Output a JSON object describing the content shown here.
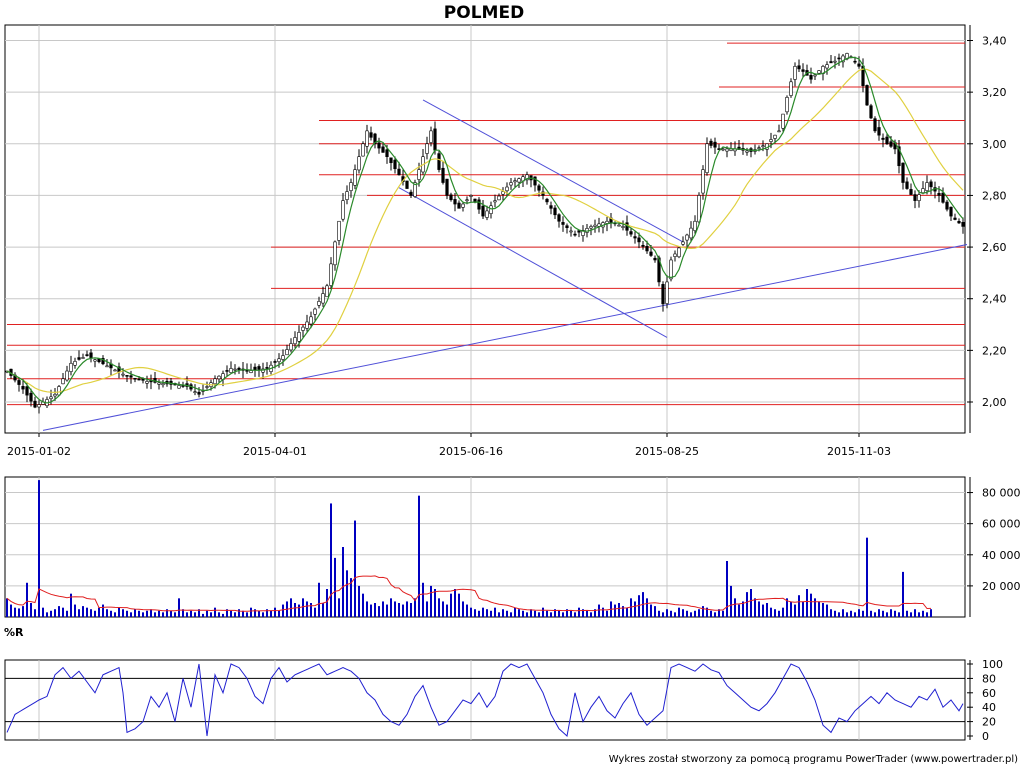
{
  "title": "POLMED",
  "footer": "Wykres został stworzony za pomocą programu PowerTrader (www.powertrader.pl)",
  "oscillator_label": "%R",
  "colors": {
    "candle_up": "#ffffff",
    "candle_down": "#000000",
    "wick": "#000000",
    "ma_short": "#2a8a2a",
    "ma_long": "#e0d040",
    "support_lines": "#e02020",
    "trend_lines": "#5050d8",
    "volume_bars": "#0000c0",
    "volume_ma": "#e02020",
    "williams_r": "#2020d0",
    "grid": "#c8c8c8"
  },
  "chart_data": [
    {
      "type": "candlestick",
      "panel": "price",
      "title": "POLMED",
      "x_tick_labels": [
        "2015-01-02",
        "2015-04-01",
        "2015-06-16",
        "2015-08-25",
        "2015-11-03"
      ],
      "x_tick_index": [
        8,
        67,
        116,
        165,
        213
      ],
      "n_sessions": 240,
      "ylim": [
        1.88,
        3.46
      ],
      "y_ticks": [
        2.0,
        2.2,
        2.4,
        2.6,
        2.8,
        3.0,
        3.2,
        3.4
      ],
      "y_tick_labels": [
        "2,00",
        "2,20",
        "2,40",
        "2,60",
        "2,80",
        "3,00",
        "3,20",
        "3,40"
      ],
      "grid": true,
      "close_anchors": [
        [
          0,
          2.12
        ],
        [
          4,
          2.05
        ],
        [
          7,
          1.98
        ],
        [
          12,
          2.03
        ],
        [
          16,
          2.15
        ],
        [
          20,
          2.18
        ],
        [
          25,
          2.14
        ],
        [
          30,
          2.1
        ],
        [
          35,
          2.08
        ],
        [
          40,
          2.07
        ],
        [
          45,
          2.06
        ],
        [
          48,
          2.03
        ],
        [
          52,
          2.09
        ],
        [
          56,
          2.13
        ],
        [
          60,
          2.12
        ],
        [
          65,
          2.13
        ],
        [
          69,
          2.18
        ],
        [
          72,
          2.25
        ],
        [
          76,
          2.33
        ],
        [
          80,
          2.45
        ],
        [
          82,
          2.62
        ],
        [
          84,
          2.78
        ],
        [
          86,
          2.85
        ],
        [
          88,
          2.95
        ],
        [
          90,
          3.05
        ],
        [
          92,
          3.0
        ],
        [
          95,
          2.95
        ],
        [
          98,
          2.88
        ],
        [
          101,
          2.8
        ],
        [
          104,
          2.95
        ],
        [
          106,
          3.05
        ],
        [
          108,
          2.9
        ],
        [
          110,
          2.8
        ],
        [
          113,
          2.75
        ],
        [
          116,
          2.8
        ],
        [
          119,
          2.72
        ],
        [
          122,
          2.78
        ],
        [
          126,
          2.85
        ],
        [
          130,
          2.88
        ],
        [
          134,
          2.8
        ],
        [
          138,
          2.7
        ],
        [
          142,
          2.65
        ],
        [
          146,
          2.68
        ],
        [
          150,
          2.7
        ],
        [
          154,
          2.68
        ],
        [
          158,
          2.62
        ],
        [
          162,
          2.55
        ],
        [
          164,
          2.38
        ],
        [
          166,
          2.55
        ],
        [
          169,
          2.62
        ],
        [
          172,
          2.7
        ],
        [
          175,
          3.0
        ],
        [
          178,
          2.98
        ],
        [
          182,
          2.98
        ],
        [
          186,
          2.97
        ],
        [
          190,
          3.0
        ],
        [
          193,
          3.05
        ],
        [
          195,
          3.18
        ],
        [
          197,
          3.3
        ],
        [
          199,
          3.28
        ],
        [
          201,
          3.25
        ],
        [
          204,
          3.3
        ],
        [
          207,
          3.32
        ],
        [
          210,
          3.35
        ],
        [
          213,
          3.3
        ],
        [
          215,
          3.15
        ],
        [
          217,
          3.05
        ],
        [
          220,
          3.0
        ],
        [
          222,
          2.98
        ],
        [
          224,
          2.85
        ],
        [
          227,
          2.78
        ],
        [
          230,
          2.85
        ],
        [
          233,
          2.8
        ],
        [
          236,
          2.72
        ],
        [
          239,
          2.68
        ]
      ],
      "ma_short_period": 5,
      "ma_long_period": 20,
      "horizontal_levels": [
        {
          "value": 3.39,
          "from_index": 180
        },
        {
          "value": 3.22,
          "from_index": 178
        },
        {
          "value": 3.09,
          "from_index": 78
        },
        {
          "value": 3.0,
          "from_index": 78
        },
        {
          "value": 2.88,
          "from_index": 78
        },
        {
          "value": 2.8,
          "from_index": 90
        },
        {
          "value": 2.6,
          "from_index": 66
        },
        {
          "value": 2.44,
          "from_index": 66
        },
        {
          "value": 2.3,
          "from_index": 0
        },
        {
          "value": 2.22,
          "from_index": 0
        },
        {
          "value": 2.09,
          "from_index": 0
        },
        {
          "value": 1.99,
          "from_index": 0
        }
      ],
      "trend_lines": [
        {
          "from": [
            9,
            1.89
          ],
          "to": [
            240,
            2.61
          ]
        },
        {
          "from": [
            104,
            3.17
          ],
          "to": [
            169,
            2.62
          ]
        },
        {
          "from": [
            98,
            2.83
          ],
          "to": [
            165,
            2.25
          ]
        }
      ]
    },
    {
      "type": "bar",
      "panel": "volume",
      "ylim": [
        0,
        90000
      ],
      "y_ticks": [
        20000,
        40000,
        60000,
        80000
      ],
      "y_tick_labels": [
        "20 000",
        "40 000",
        "60 000",
        "80 000"
      ],
      "values": [
        12000,
        8000,
        6000,
        5500,
        7000,
        22000,
        9000,
        5000,
        88000,
        6000,
        3000,
        4000,
        5000,
        7000,
        6000,
        4000,
        15000,
        8000,
        5000,
        7000,
        6000,
        5000,
        4000,
        6000,
        8000,
        5000,
        4000,
        3000,
        6000,
        5000,
        4000,
        3000,
        5000,
        4000,
        3000,
        4000,
        5000,
        3000,
        4000,
        3000,
        5000,
        4000,
        3000,
        12000,
        5000,
        3000,
        4000,
        3000,
        5000,
        2000,
        4000,
        3000,
        6000,
        3000,
        2000,
        5000,
        4000,
        3000,
        5000,
        4000,
        3000,
        6000,
        5000,
        4000,
        3000,
        5000,
        4000,
        6000,
        4000,
        8000,
        10000,
        12000,
        9000,
        8000,
        12000,
        10000,
        9000,
        6000,
        22000,
        9000,
        18000,
        73000,
        38000,
        12000,
        45000,
        30000,
        25000,
        62000,
        20000,
        15000,
        10000,
        8000,
        9000,
        7000,
        10000,
        8000,
        12000,
        10000,
        9000,
        8000,
        10000,
        9000,
        12000,
        78000,
        22000,
        10000,
        20000,
        18000,
        12000,
        10000,
        8000,
        15000,
        18000,
        15000,
        10000,
        8000,
        6000,
        5000,
        4000,
        6000,
        5000,
        4000,
        6000,
        3000,
        5000,
        4000,
        3000,
        6000,
        5000,
        4000,
        3000,
        5000,
        4000,
        3000,
        6000,
        4000,
        3000,
        5000,
        4000,
        3000,
        5000,
        4000,
        3000,
        6000,
        5000,
        4000,
        3000,
        5000,
        8000,
        6000,
        4000,
        10000,
        8000,
        9000,
        7000,
        6000,
        12000,
        10000,
        14000,
        16000,
        12000,
        8000,
        7000,
        4000,
        3000,
        5000,
        4000,
        3000,
        6000,
        5000,
        4000,
        3000,
        4000,
        5000,
        7000,
        6000,
        4000,
        3000,
        5000,
        4000,
        36000,
        20000,
        12000,
        8000,
        10000,
        16000,
        18000,
        12000,
        10000,
        8000,
        9000,
        6000,
        5000,
        4000,
        6000,
        12000,
        10000,
        8000,
        14000,
        10000,
        18000,
        15000,
        12000,
        10000,
        9000,
        8000,
        5000,
        4000,
        3000,
        5000,
        3000,
        4000,
        3000,
        5000,
        4000,
        51000,
        4000,
        3000,
        5000,
        4000,
        3000,
        5000,
        4000,
        3000,
        29000,
        4000,
        3000,
        5000,
        3000,
        4000,
        3000,
        5000
      ]
    },
    {
      "type": "line",
      "panel": "oscillator",
      "name": "%R",
      "ylim": [
        0,
        100
      ],
      "y_ticks": [
        0,
        20,
        40,
        60,
        80,
        100
      ],
      "y_tick_labels": [
        "0",
        "20",
        "40",
        "60",
        "80",
        "100"
      ],
      "reference_levels": [
        20,
        80
      ],
      "anchors": [
        [
          0,
          5
        ],
        [
          2,
          30
        ],
        [
          5,
          40
        ],
        [
          8,
          50
        ],
        [
          10,
          55
        ],
        [
          12,
          85
        ],
        [
          14,
          95
        ],
        [
          16,
          80
        ],
        [
          18,
          90
        ],
        [
          20,
          75
        ],
        [
          22,
          60
        ],
        [
          24,
          85
        ],
        [
          26,
          90
        ],
        [
          28,
          95
        ],
        [
          29,
          60
        ],
        [
          30,
          5
        ],
        [
          32,
          10
        ],
        [
          34,
          20
        ],
        [
          36,
          55
        ],
        [
          38,
          40
        ],
        [
          40,
          60
        ],
        [
          42,
          20
        ],
        [
          44,
          80
        ],
        [
          46,
          40
        ],
        [
          48,
          100
        ],
        [
          50,
          0
        ],
        [
          52,
          85
        ],
        [
          54,
          60
        ],
        [
          56,
          100
        ],
        [
          58,
          95
        ],
        [
          60,
          80
        ],
        [
          62,
          55
        ],
        [
          64,
          45
        ],
        [
          66,
          80
        ],
        [
          68,
          95
        ],
        [
          70,
          75
        ],
        [
          72,
          85
        ],
        [
          74,
          90
        ],
        [
          76,
          95
        ],
        [
          78,
          100
        ],
        [
          80,
          85
        ],
        [
          82,
          90
        ],
        [
          84,
          95
        ],
        [
          86,
          90
        ],
        [
          88,
          80
        ],
        [
          90,
          60
        ],
        [
          92,
          50
        ],
        [
          94,
          30
        ],
        [
          96,
          20
        ],
        [
          98,
          15
        ],
        [
          100,
          30
        ],
        [
          102,
          55
        ],
        [
          104,
          70
        ],
        [
          106,
          40
        ],
        [
          108,
          15
        ],
        [
          110,
          20
        ],
        [
          112,
          35
        ],
        [
          114,
          50
        ],
        [
          116,
          45
        ],
        [
          118,
          60
        ],
        [
          120,
          40
        ],
        [
          122,
          55
        ],
        [
          124,
          90
        ],
        [
          126,
          100
        ],
        [
          128,
          95
        ],
        [
          130,
          100
        ],
        [
          132,
          80
        ],
        [
          134,
          60
        ],
        [
          136,
          30
        ],
        [
          138,
          10
        ],
        [
          140,
          0
        ],
        [
          142,
          60
        ],
        [
          144,
          20
        ],
        [
          146,
          40
        ],
        [
          148,
          55
        ],
        [
          150,
          35
        ],
        [
          152,
          25
        ],
        [
          154,
          45
        ],
        [
          156,
          60
        ],
        [
          158,
          30
        ],
        [
          160,
          15
        ],
        [
          162,
          25
        ],
        [
          164,
          35
        ],
        [
          166,
          95
        ],
        [
          168,
          100
        ],
        [
          170,
          95
        ],
        [
          172,
          90
        ],
        [
          174,
          100
        ],
        [
          176,
          92
        ],
        [
          178,
          88
        ],
        [
          180,
          70
        ],
        [
          182,
          60
        ],
        [
          184,
          50
        ],
        [
          186,
          40
        ],
        [
          188,
          35
        ],
        [
          190,
          45
        ],
        [
          192,
          60
        ],
        [
          194,
          80
        ],
        [
          196,
          100
        ],
        [
          198,
          95
        ],
        [
          200,
          75
        ],
        [
          202,
          50
        ],
        [
          204,
          15
        ],
        [
          206,
          5
        ],
        [
          208,
          25
        ],
        [
          210,
          20
        ],
        [
          212,
          35
        ],
        [
          214,
          45
        ],
        [
          216,
          55
        ],
        [
          218,
          45
        ],
        [
          220,
          60
        ],
        [
          222,
          50
        ],
        [
          224,
          45
        ],
        [
          226,
          40
        ],
        [
          228,
          55
        ],
        [
          230,
          50
        ],
        [
          232,
          65
        ],
        [
          234,
          40
        ],
        [
          236,
          50
        ],
        [
          238,
          35
        ],
        [
          240,
          55
        ]
      ]
    }
  ]
}
